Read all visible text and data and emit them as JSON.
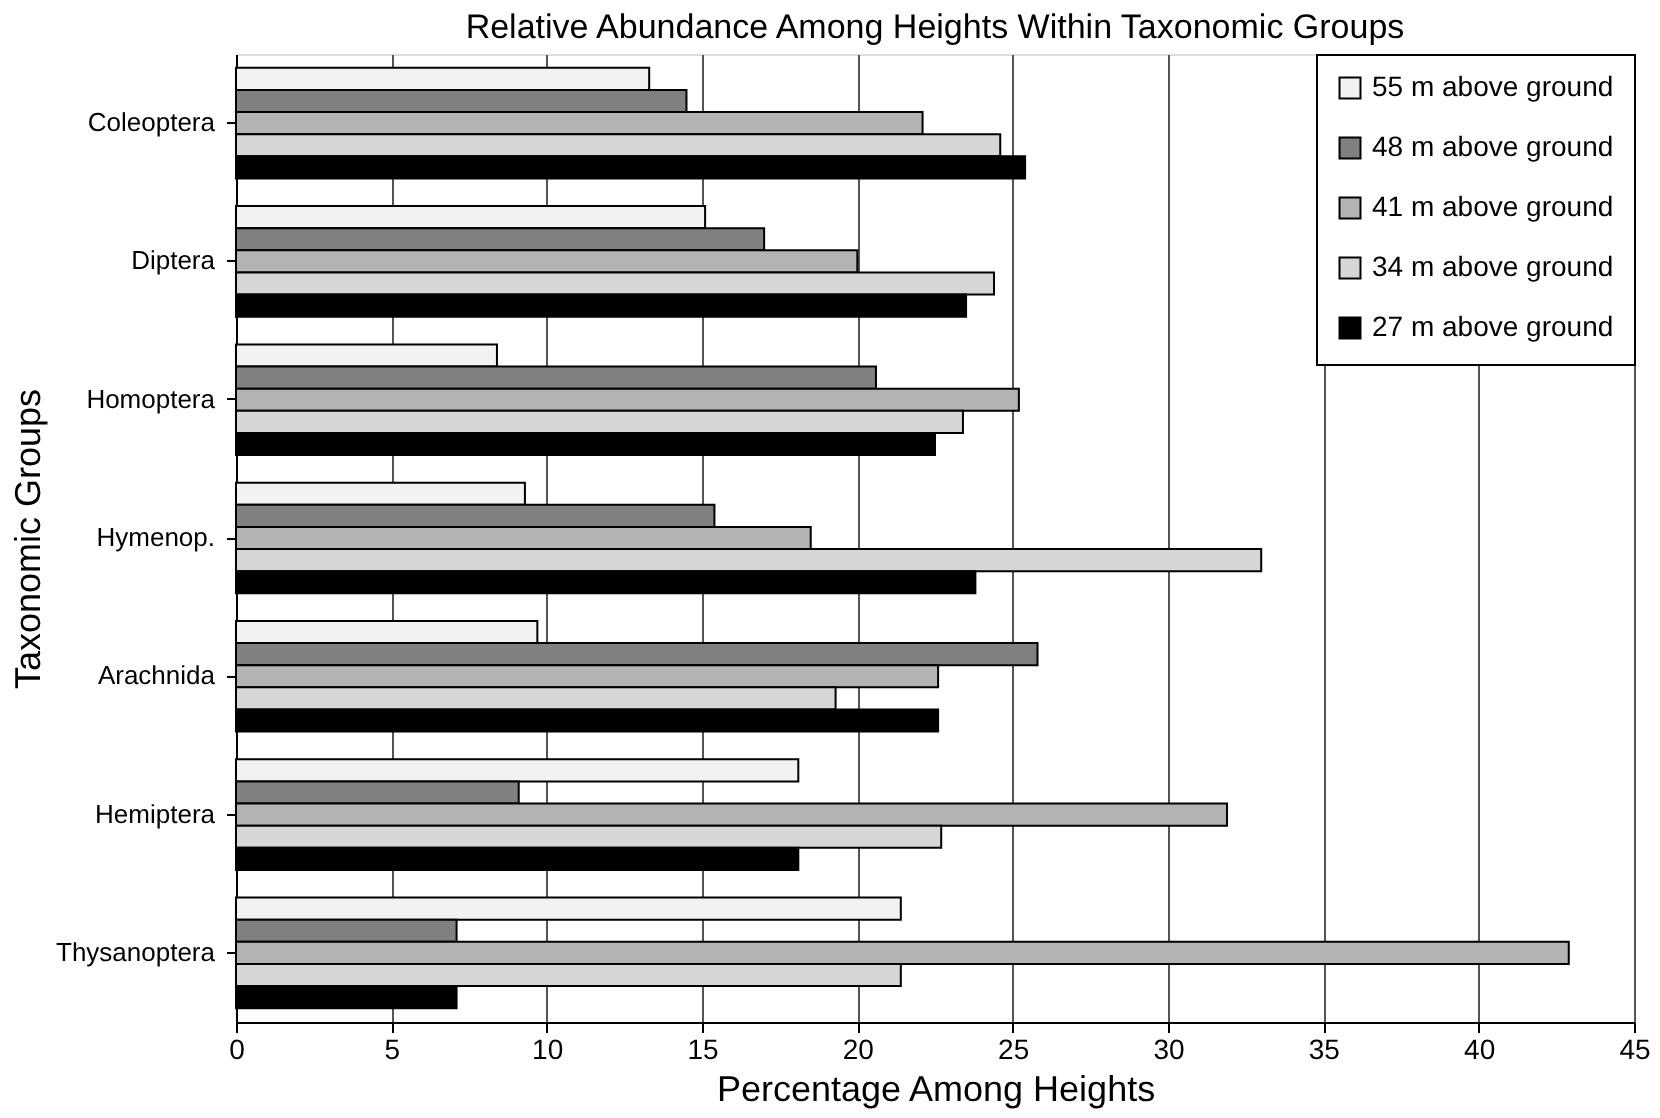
{
  "chart_data": {
    "type": "bar",
    "orientation": "horizontal",
    "title": "Relative Abundance Among Heights Within Taxonomic Groups",
    "xlabel": "Percentage Among Heights",
    "ylabel": "Taxonomic Groups",
    "categories": [
      "Coleoptera",
      "Diptera",
      "Homoptera",
      "Hymenop.",
      "Arachnida",
      "Hemiptera",
      "Thysanoptera"
    ],
    "series": [
      {
        "name": "55 m above ground",
        "color": "#f2f2f2",
        "values": [
          13.3,
          15.1,
          8.4,
          9.3,
          9.7,
          18.1,
          21.4
        ]
      },
      {
        "name": "48 m above ground",
        "color": "#808080",
        "values": [
          14.5,
          17.0,
          20.6,
          15.4,
          25.8,
          9.1,
          7.1
        ]
      },
      {
        "name": "41 m above ground",
        "color": "#b3b3b3",
        "values": [
          22.1,
          20.0,
          25.2,
          18.5,
          22.6,
          31.9,
          42.9
        ]
      },
      {
        "name": "34 m above ground",
        "color": "#d6d6d6",
        "values": [
          24.6,
          24.4,
          23.4,
          33.0,
          19.3,
          22.7,
          21.4
        ]
      },
      {
        "name": "27 m above ground",
        "color": "#000000",
        "values": [
          25.4,
          23.5,
          22.5,
          23.8,
          22.6,
          18.1,
          7.1
        ]
      }
    ],
    "xlim": [
      0,
      45
    ],
    "xticks": [
      0,
      5,
      10,
      15,
      20,
      25,
      30,
      35,
      40,
      45
    ],
    "grid": "x",
    "legend": "top right"
  }
}
